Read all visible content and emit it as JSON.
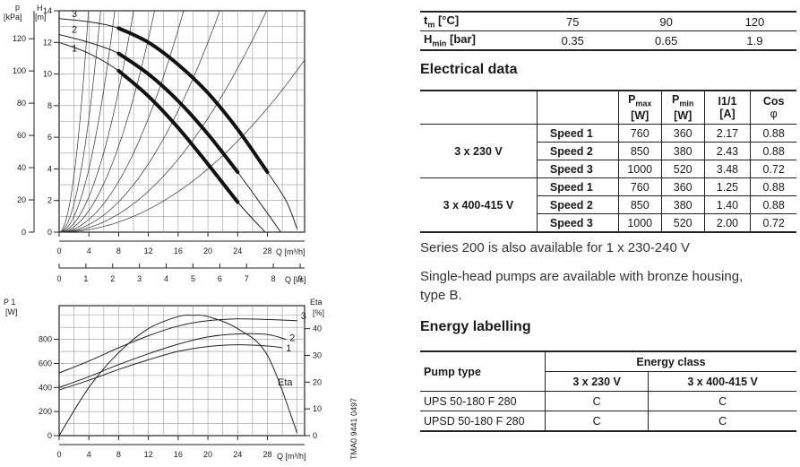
{
  "top_chart": {
    "left_axis_label": "p",
    "left_axis_unit": "[kPa]",
    "h_axis_label": "H",
    "h_axis_unit": "[m]",
    "p_ticks": [
      "0",
      "20",
      "40",
      "60",
      "80",
      "100",
      "120"
    ],
    "h_ticks": [
      "0",
      "2",
      "4",
      "6",
      "8",
      "10",
      "12",
      "14"
    ],
    "q_m3h_ticks": [
      "0",
      "4",
      "8",
      "12",
      "16",
      "20",
      "24",
      "28"
    ],
    "q_m3h_label": "Q [m³/h]",
    "q_ls_ticks": [
      "0",
      "1",
      "2",
      "3",
      "4",
      "5",
      "6",
      "7",
      "8",
      "9"
    ],
    "q_ls_label": "Q [l/s]",
    "curve_labels": [
      "3",
      "2",
      "1"
    ]
  },
  "bottom_chart": {
    "left_axis_label": "P 1",
    "left_axis_unit": "[W]",
    "right_axis_label": "Eta",
    "right_axis_unit": "[%]",
    "p_ticks": [
      "0",
      "200",
      "400",
      "600",
      "800"
    ],
    "eta_ticks": [
      "0",
      "10",
      "20",
      "30",
      "40"
    ],
    "q_ticks": [
      "0",
      "4",
      "8",
      "12",
      "16",
      "20",
      "24",
      "28"
    ],
    "q_label": "Q [m³/h]",
    "curve_labels": [
      "3",
      "2",
      "1"
    ],
    "eta_curve_label": "Eta",
    "figure_code": "TMA0 9441 0497"
  },
  "chart_data": [
    {
      "type": "line",
      "title": "",
      "xlabel": "Q [m³/h]",
      "ylabel": "H [m]",
      "xlim": [
        0,
        33
      ],
      "ylim": [
        0,
        14
      ],
      "series": [
        {
          "name": "3",
          "x": [
            0,
            4,
            8,
            12,
            16,
            20,
            24,
            28,
            30.5,
            32
          ],
          "y": [
            13.5,
            13.3,
            12.9,
            12.0,
            10.6,
            8.8,
            6.5,
            3.8,
            2.0,
            0.2
          ]
        },
        {
          "name": "2",
          "x": [
            0,
            4,
            8,
            12,
            16,
            20,
            24,
            28,
            29.8
          ],
          "y": [
            12.5,
            12.0,
            11.3,
            10.0,
            8.3,
            6.2,
            3.8,
            1.2,
            0.0
          ]
        },
        {
          "name": "1",
          "x": [
            0,
            4,
            8,
            12,
            16,
            20,
            24,
            27.7
          ],
          "y": [
            12.0,
            11.3,
            10.2,
            8.6,
            6.6,
            4.3,
            1.9,
            0.0
          ]
        }
      ]
    },
    {
      "type": "line",
      "title": "",
      "xlabel": "Q [m³/h]",
      "ylabel": "P1 [W]",
      "xlim": [
        0,
        33
      ],
      "ylim": [
        0,
        1000
      ],
      "series": [
        {
          "name": "3",
          "x": [
            0,
            4,
            8,
            12,
            16,
            20,
            24,
            28,
            32
          ],
          "y": [
            520,
            620,
            730,
            830,
            910,
            955,
            970,
            965,
            955
          ]
        },
        {
          "name": "2",
          "x": [
            0,
            4,
            8,
            12,
            16,
            20,
            24,
            28,
            30.5
          ],
          "y": [
            400,
            490,
            590,
            680,
            760,
            820,
            845,
            840,
            800
          ]
        },
        {
          "name": "1",
          "x": [
            0,
            4,
            8,
            12,
            16,
            20,
            24,
            28,
            30
          ],
          "y": [
            380,
            460,
            550,
            630,
            700,
            740,
            755,
            745,
            730
          ]
        },
        {
          "name": "Eta",
          "x": [
            0,
            4,
            8,
            12,
            16,
            18,
            20,
            24,
            28,
            32
          ],
          "y": [
            0,
            18,
            31,
            40,
            44.5,
            45,
            44.5,
            40,
            30,
            1
          ]
        }
      ]
    }
  ],
  "temperature_table": {
    "row1_label": "t",
    "row1_sub": "m",
    "row1_unit": " [°C]",
    "row1_values": [
      "75",
      "90",
      "120"
    ],
    "row2_label": "H",
    "row2_sub": "min",
    "row2_unit": " [bar]",
    "row2_values": [
      "0.35",
      "0.65",
      "1.9"
    ]
  },
  "electrical": {
    "heading": "Electrical data",
    "col_pmax": "P",
    "col_pmax_sub": "max",
    "col_pmax_unit": "[W]",
    "col_pmin": "P",
    "col_pmin_sub": "min",
    "col_pmin_unit": "[W]",
    "col_i": "I1/1",
    "col_i_unit": "[A]",
    "col_cos": "Cos",
    "col_cos_unit": "φ",
    "groups": [
      {
        "voltage": "3 x 230 V",
        "rows": [
          {
            "speed": "Speed 1",
            "pmax": "760",
            "pmin": "360",
            "i": "2.17",
            "cos": "0.88"
          },
          {
            "speed": "Speed 2",
            "pmax": "850",
            "pmin": "380",
            "i": "2.43",
            "cos": "0.88"
          },
          {
            "speed": "Speed 3",
            "pmax": "1000",
            "pmin": "520",
            "i": "3.48",
            "cos": "0.72"
          }
        ]
      },
      {
        "voltage": "3 x 400-415 V",
        "rows": [
          {
            "speed": "Speed 1",
            "pmax": "760",
            "pmin": "360",
            "i": "1.25",
            "cos": "0.88"
          },
          {
            "speed": "Speed 2",
            "pmax": "850",
            "pmin": "380",
            "i": "1.40",
            "cos": "0.88"
          },
          {
            "speed": "Speed 3",
            "pmax": "1000",
            "pmin": "520",
            "i": "2.00",
            "cos": "0.72"
          }
        ]
      }
    ]
  },
  "notes": {
    "series_note": "Series 200 is also available for 1 x 230-240 V",
    "bronze_line1": "Single-head pumps are available with bronze housing,",
    "bronze_line2": "type B."
  },
  "energy": {
    "heading": "Energy labelling",
    "col_pump_type": "Pump type",
    "col_energy_class": "Energy class",
    "col_230": "3 x 230 V",
    "col_400": "3 x 400-415 V",
    "rows": [
      {
        "pump": "UPS 50-180 F 280",
        "c230": "C",
        "c400": "C"
      },
      {
        "pump": "UPSD 50-180 F 280",
        "c230": "C",
        "c400": "C"
      }
    ]
  }
}
